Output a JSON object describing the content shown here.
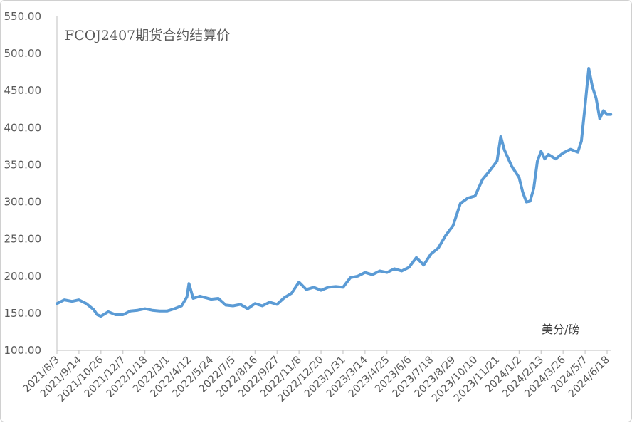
{
  "chart_data": {
    "type": "line",
    "title": "FCOJ2407期货合约结算价",
    "unit_label": "美分/磅",
    "ylim": [
      100,
      550
    ],
    "y_ticks": [
      "100.00",
      "150.00",
      "200.00",
      "250.00",
      "300.00",
      "350.00",
      "400.00",
      "450.00",
      "500.00",
      "550.00"
    ],
    "x_tick_labels": [
      "2021/8/3",
      "2021/9/14",
      "2021/10/26",
      "2021/12/7",
      "2022/1/18",
      "2022/3/1",
      "2022/4/12",
      "2022/5/24",
      "2022/7/5",
      "2022/8/16",
      "2022/9/27",
      "2022/11/8",
      "2022/12/20",
      "2023/1/31",
      "2023/3/14",
      "2023/4/25",
      "2023/6/6",
      "2023/7/18",
      "2023/8/29",
      "2023/10/10",
      "2023/11/21",
      "2024/1/2",
      "2024/2/13",
      "2024/3/26",
      "2024/5/7",
      "2024/6/18"
    ],
    "grid": false,
    "legend": "none",
    "line_color": "#5b9bd5",
    "series": [
      {
        "x": [
          "2021-08-03",
          "2021-08-17",
          "2021-09-01",
          "2021-09-14",
          "2021-09-28",
          "2021-10-12",
          "2021-10-19",
          "2021-10-26",
          "2021-11-09",
          "2021-11-23",
          "2021-12-07",
          "2021-12-21",
          "2022-01-04",
          "2022-01-18",
          "2022-02-01",
          "2022-02-15",
          "2022-03-01",
          "2022-03-15",
          "2022-03-29",
          "2022-04-08",
          "2022-04-12",
          "2022-04-20",
          "2022-05-03",
          "2022-05-24",
          "2022-06-07",
          "2022-06-21",
          "2022-07-05",
          "2022-07-19",
          "2022-08-02",
          "2022-08-16",
          "2022-08-30",
          "2022-09-13",
          "2022-09-27",
          "2022-10-11",
          "2022-10-25",
          "2022-11-08",
          "2022-11-22",
          "2022-12-06",
          "2022-12-20",
          "2023-01-03",
          "2023-01-17",
          "2023-01-31",
          "2023-02-14",
          "2023-02-28",
          "2023-03-14",
          "2023-03-28",
          "2023-04-11",
          "2023-04-25",
          "2023-05-09",
          "2023-05-23",
          "2023-06-06",
          "2023-06-20",
          "2023-07-04",
          "2023-07-18",
          "2023-08-01",
          "2023-08-15",
          "2023-08-29",
          "2023-09-12",
          "2023-09-26",
          "2023-10-10",
          "2023-10-24",
          "2023-11-07",
          "2023-11-21",
          "2023-11-28",
          "2023-12-05",
          "2023-12-19",
          "2024-01-02",
          "2024-01-09",
          "2024-01-16",
          "2024-01-23",
          "2024-01-30",
          "2024-02-06",
          "2024-02-13",
          "2024-02-20",
          "2024-02-27",
          "2024-03-12",
          "2024-03-26",
          "2024-04-09",
          "2024-04-23",
          "2024-04-30",
          "2024-05-07",
          "2024-05-14",
          "2024-05-21",
          "2024-05-28",
          "2024-06-04",
          "2024-06-11",
          "2024-06-18",
          "2024-06-25"
        ],
        "values": [
          163,
          168,
          166,
          168,
          163,
          155,
          148,
          146,
          152,
          148,
          148,
          153,
          154,
          156,
          154,
          153,
          153,
          156,
          160,
          172,
          190,
          170,
          173,
          169,
          170,
          161,
          160,
          162,
          156,
          163,
          160,
          165,
          162,
          171,
          177,
          192,
          182,
          185,
          181,
          185,
          186,
          185,
          198,
          200,
          205,
          202,
          207,
          205,
          210,
          207,
          212,
          225,
          215,
          230,
          238,
          255,
          268,
          298,
          305,
          308,
          330,
          342,
          355,
          388,
          370,
          348,
          333,
          313,
          300,
          301,
          318,
          355,
          368,
          358,
          364,
          358,
          366,
          371,
          367,
          382,
          430,
          480,
          455,
          440,
          412,
          423,
          418,
          418
        ]
      }
    ]
  }
}
